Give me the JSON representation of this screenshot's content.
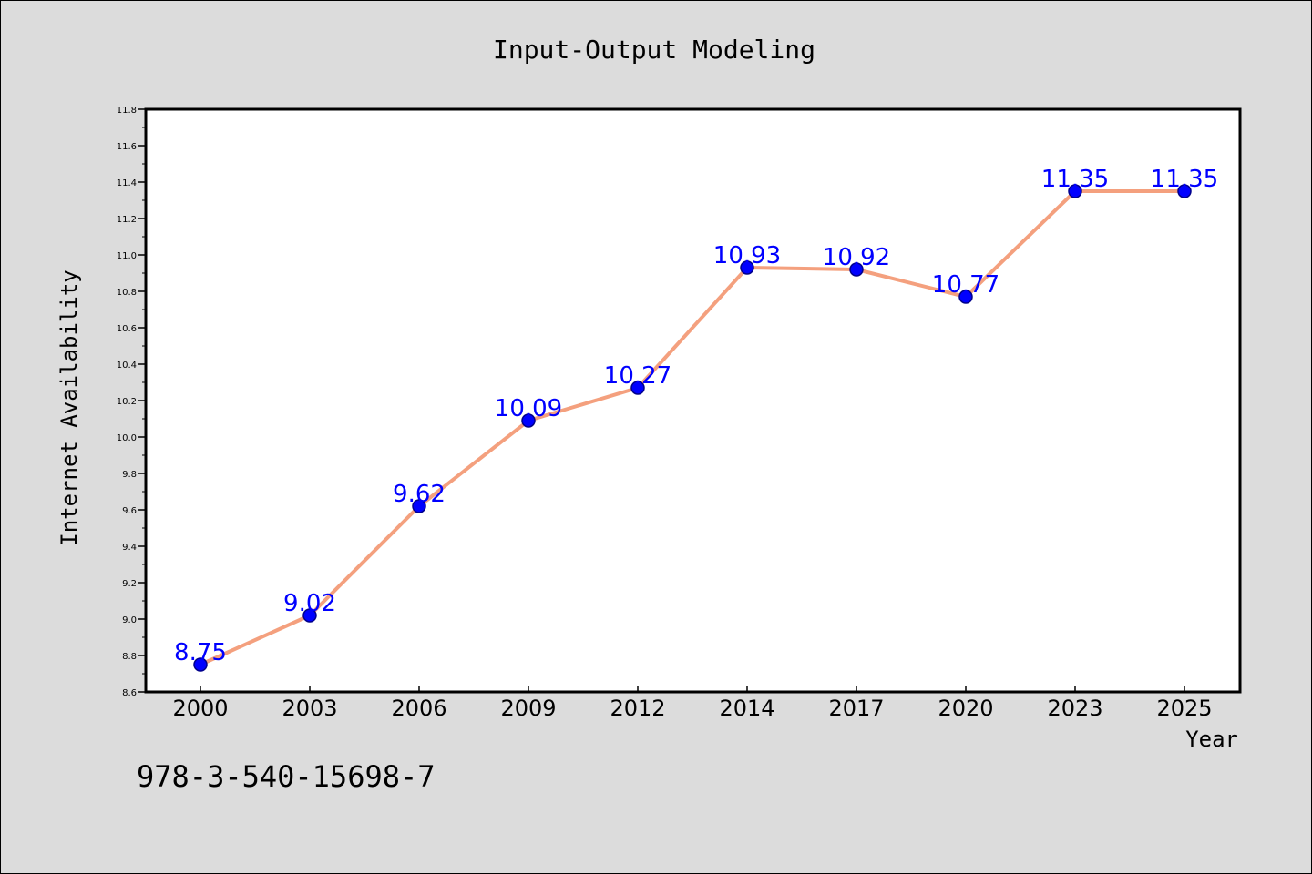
{
  "chart_data": {
    "type": "line",
    "title": "Input-Output Modeling",
    "xlabel": "Year",
    "ylabel": "Internet Availability",
    "categories": [
      "2000",
      "2003",
      "2006",
      "2009",
      "2012",
      "2014",
      "2017",
      "2020",
      "2023",
      "2025"
    ],
    "series": [
      {
        "values": [
          8.75,
          9.02,
          9.62,
          10.09,
          10.27,
          10.93,
          10.92,
          10.77,
          11.35,
          11.35
        ]
      }
    ],
    "data_labels": [
      "8.75",
      "9.02",
      "9.62",
      "10.09",
      "10.27",
      "10.93",
      "10.92",
      "10.77",
      "11.35",
      "11.35"
    ],
    "ylim": [
      8.6,
      11.8
    ],
    "yticks": [
      "8.6",
      "8.8",
      "9.0",
      "9.2",
      "9.4",
      "9.6",
      "9.8",
      "10.0",
      "10.2",
      "10.4",
      "10.6",
      "10.8",
      "11.0",
      "11.2",
      "11.4",
      "11.6",
      "11.8"
    ],
    "grid": false,
    "legend": "none",
    "colors": {
      "line": "#f4a07e",
      "marker": "#0000ff",
      "marker_edge": "#00008b",
      "data_label": "#0000ff",
      "plot_bg": "#ffffff",
      "figure_bg": "#dcdcdc"
    }
  },
  "footnote": "978-3-540-15698-7"
}
